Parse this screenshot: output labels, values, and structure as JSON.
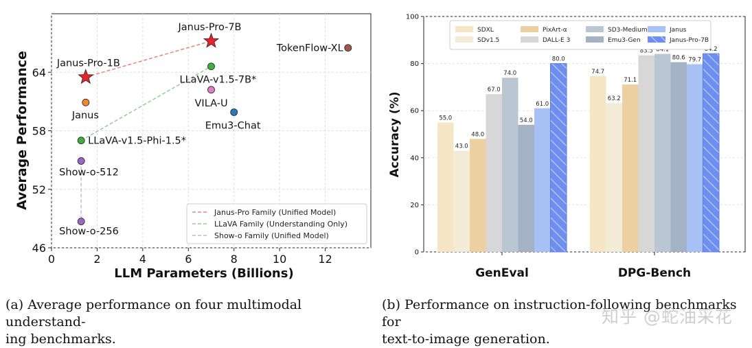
{
  "chart_data": [
    {
      "type": "scatter",
      "title": "",
      "xlabel": "LLM Parameters (Billions)",
      "ylabel": "Average Performance",
      "xlim": [
        0,
        14
      ],
      "ylim": [
        46,
        70
      ],
      "xticks": [
        "0",
        "2",
        "4",
        "6",
        "8",
        "10",
        "12"
      ],
      "xtick_values": [
        0,
        2,
        4,
        6,
        8,
        10,
        12
      ],
      "yticks": [
        "46",
        "52",
        "58",
        "64"
      ],
      "ytick_values": [
        46,
        52,
        58,
        64
      ],
      "points": [
        {
          "label": "Janus-Pro-7B",
          "x": 7.0,
          "y": 67.2,
          "marker": "star",
          "color": "#e8232a"
        },
        {
          "label": "Janus-Pro-1B",
          "x": 1.5,
          "y": 63.5,
          "marker": "star",
          "color": "#e8232a"
        },
        {
          "label": "TokenFlow-XL",
          "x": 13.0,
          "y": 66.5,
          "marker": "circle",
          "color": "#a0574b"
        },
        {
          "label": "LLaVA-v1.5-7B*",
          "x": 7.0,
          "y": 64.6,
          "marker": "circle",
          "color": "#3fae3f"
        },
        {
          "label": "VILA-U",
          "x": 7.0,
          "y": 62.2,
          "marker": "circle",
          "color": "#e27ec6"
        },
        {
          "label": "Janus",
          "x": 1.5,
          "y": 60.9,
          "marker": "circle",
          "color": "#f28a2c"
        },
        {
          "label": "Emu3-Chat",
          "x": 8.0,
          "y": 59.9,
          "marker": "circle",
          "color": "#2f77b6"
        },
        {
          "label": "LLaVA-v1.5-Phi-1.5*",
          "x": 1.3,
          "y": 57.0,
          "marker": "circle",
          "color": "#3fae3f"
        },
        {
          "label": "Show-o-512",
          "x": 1.3,
          "y": 54.9,
          "marker": "circle",
          "color": "#9a68c4"
        },
        {
          "label": "Show-o-256",
          "x": 1.3,
          "y": 48.7,
          "marker": "circle",
          "color": "#9a68c4"
        }
      ],
      "lines": [
        {
          "name": "Janus-Pro Family (Unified Model)",
          "color": "#e8837a",
          "from": [
            1.5,
            63.5
          ],
          "to": [
            7.0,
            67.2
          ]
        },
        {
          "name": "LLaVA Family (Understanding Only)",
          "color": "#8fcf8f",
          "from": [
            1.3,
            57.0
          ],
          "to": [
            7.0,
            64.6
          ]
        },
        {
          "name": "Show-o Family (Unified Model)",
          "color": "#c2b8d4",
          "from": [
            1.3,
            54.9
          ],
          "to": [
            1.3,
            48.7
          ]
        }
      ],
      "legend": "bottom-right",
      "grid": true
    },
    {
      "type": "bar",
      "title": "",
      "xlabel": "",
      "ylabel": "Accuracy (%)",
      "ylim": [
        0,
        100
      ],
      "yticks": [
        "0",
        "20",
        "40",
        "60",
        "80",
        "100"
      ],
      "ytick_values": [
        0,
        20,
        40,
        60,
        80,
        100
      ],
      "categories": [
        "GenEval",
        "DPG-Bench"
      ],
      "series": [
        {
          "name": "SDXL",
          "color": "#f5e7c6",
          "values": [
            55.0,
            74.7
          ],
          "labels": [
            "55.0",
            "74.7"
          ]
        },
        {
          "name": "SDv1.5",
          "color": "#f2ecd6",
          "values": [
            43.0,
            63.2
          ],
          "labels": [
            "43.0",
            "63.2"
          ]
        },
        {
          "name": "PixArt-α",
          "color": "#ecd0a1",
          "values": [
            48.0,
            71.1
          ],
          "labels": [
            "48.0",
            "71.1"
          ]
        },
        {
          "name": "DALL-E 3",
          "color": "#d7d7d7",
          "values": [
            67.0,
            83.5
          ],
          "labels": [
            "67.0",
            "83.5"
          ]
        },
        {
          "name": "SD3-Medium",
          "color": "#bac6d2",
          "values": [
            74.0,
            84.1
          ],
          "labels": [
            "74.0",
            "84.1"
          ]
        },
        {
          "name": "Emu3-Gen",
          "color": "#a3b3c5",
          "values": [
            54.0,
            80.6
          ],
          "labels": [
            "54.0",
            "80.6"
          ]
        },
        {
          "name": "Janus",
          "color": "#a8c1f5",
          "values": [
            61.0,
            79.7
          ],
          "labels": [
            "61.0",
            "79.7"
          ]
        },
        {
          "name": "Janus-Pro-7B",
          "color": "#6e8ef0",
          "values": [
            80.0,
            84.2
          ],
          "labels": [
            "80.0",
            "84.2"
          ],
          "hatch": true
        }
      ],
      "legend": "top",
      "grid": true
    }
  ],
  "captions": {
    "a_line1": "(a)  Average performance on four multimodal understand-",
    "a_line2": "ing benchmarks.",
    "b_line1": "(b)  Performance on instruction-following benchmarks for",
    "b_line2": "text-to-image generation."
  },
  "watermark": "知乎 @蛇油采花"
}
